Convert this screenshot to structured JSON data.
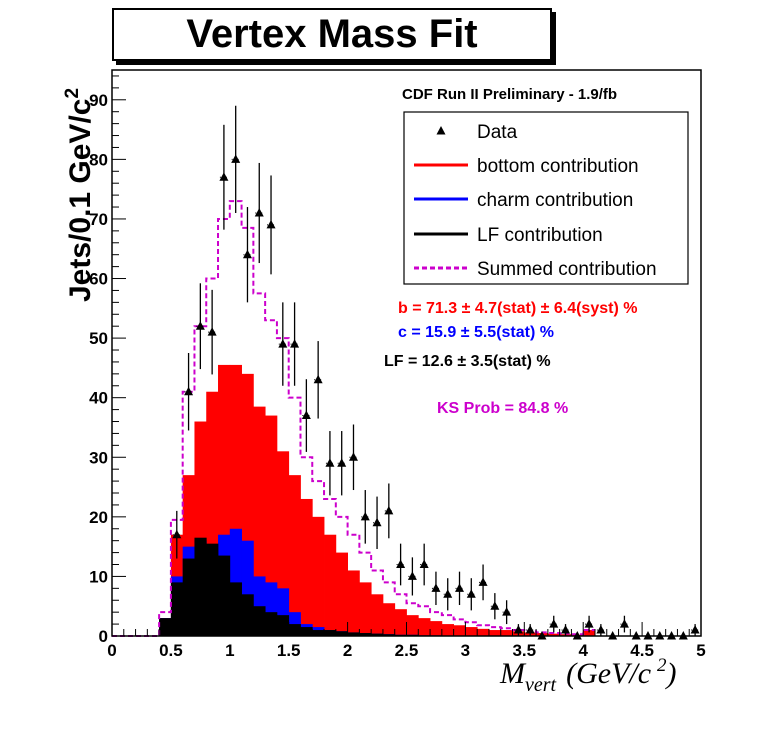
{
  "chart_data": {
    "type": "histogram",
    "title": "Vertex Mass Fit",
    "experiment_label": "CDF Run II Preliminary - 1.9/fb",
    "ylabel": "Jets/0.1 GeV/c",
    "ylabel_superscript": "2",
    "xlabel_main": "M",
    "xlabel_sub": "vert",
    "xlabel_units": "(GeV/c",
    "xlabel_units_superscript": "2",
    "xlabel_units_close": ")",
    "xlim": [
      0,
      5
    ],
    "ylim": [
      0,
      95
    ],
    "x_ticks": [
      "0",
      "0.5",
      "1",
      "1.5",
      "2",
      "2.5",
      "3",
      "3.5",
      "4",
      "4.5",
      "5"
    ],
    "y_ticks": [
      "0",
      "10",
      "20",
      "30",
      "40",
      "50",
      "60",
      "70",
      "80",
      "90"
    ],
    "bin_edges_start": 0.4,
    "bin_width": 0.1,
    "series": [
      {
        "name": "bottom contribution",
        "color": "#ff0000",
        "values": [
          3,
          17,
          27,
          36,
          41,
          45.5,
          45.5,
          44,
          38.5,
          37,
          31,
          27,
          23,
          20,
          17,
          14,
          11,
          9,
          7,
          5.5,
          4.5,
          3.5,
          3,
          2.5,
          2,
          1.8,
          1.5,
          1.2,
          1,
          1,
          0.8,
          0.6,
          0.5,
          0.4,
          0.3,
          0.2,
          1
        ]
      },
      {
        "name": "charm contribution",
        "color": "#0000ff",
        "values": [
          3,
          10,
          15,
          16,
          15,
          17,
          18,
          16,
          10,
          9,
          8,
          4,
          2,
          1.5,
          1,
          0.8,
          0.6,
          0.5,
          0.4,
          0.3,
          0.2,
          0.2,
          0.1,
          0.1,
          0,
          0,
          0,
          0,
          0,
          0,
          0,
          0,
          0,
          0,
          0,
          0,
          0
        ]
      },
      {
        "name": "LF contribution",
        "color": "#000000",
        "values": [
          3,
          9,
          13,
          16.5,
          15.5,
          13.5,
          9,
          7,
          5,
          4,
          3.5,
          2,
          1.5,
          1,
          1,
          0.8,
          0.6,
          0.5,
          0.4,
          0.3,
          0.2,
          0.2,
          0.1,
          0.1,
          0,
          0,
          0,
          0,
          0,
          0,
          0,
          0,
          0,
          0,
          0,
          0,
          0
        ]
      },
      {
        "name": "Summed contribution",
        "color": "#cc00cc",
        "values": [
          4,
          19.5,
          41,
          52,
          60,
          70,
          73,
          68.5,
          57.5,
          53,
          50,
          40,
          30,
          26,
          23,
          20,
          17,
          14,
          11,
          9,
          7,
          5.5,
          5,
          4,
          3.5,
          2.8,
          2.3,
          1.8,
          1.5,
          1.3,
          1,
          0.8,
          0.6,
          0.5,
          0.4,
          0.3,
          1
        ]
      },
      {
        "name": "Data",
        "color": "#000000",
        "x": [
          0.55,
          0.65,
          0.75,
          0.85,
          0.95,
          1.05,
          1.15,
          1.25,
          1.35,
          1.45,
          1.55,
          1.65,
          1.75,
          1.85,
          1.95,
          2.05,
          2.15,
          2.25,
          2.35,
          2.45,
          2.55,
          2.65,
          2.75,
          2.85,
          2.95,
          3.05,
          3.15,
          3.25,
          3.35,
          3.45,
          3.55,
          3.65,
          3.75,
          3.85,
          3.95,
          4.05,
          4.15,
          4.25,
          4.35,
          4.45,
          4.55,
          4.65,
          4.75,
          4.85,
          4.95
        ],
        "values": [
          17,
          41,
          52,
          51,
          77,
          80,
          64,
          71,
          69,
          49,
          49,
          37,
          43,
          29,
          29,
          30,
          20,
          19,
          21,
          12,
          10,
          12,
          8,
          7,
          8,
          7,
          9,
          5,
          4,
          1,
          1,
          0,
          2,
          1,
          0,
          2,
          1,
          0,
          2,
          0,
          0,
          0,
          0,
          0,
          1
        ],
        "errors": [
          4,
          6.5,
          7.2,
          7.1,
          8.8,
          9,
          8,
          8.4,
          8.3,
          7,
          7,
          6.1,
          6.5,
          5.4,
          5.4,
          5.5,
          4.5,
          4.4,
          4.6,
          3.5,
          3.2,
          3.5,
          2.8,
          2.7,
          2.8,
          2.7,
          3,
          2.2,
          2,
          1,
          1,
          0,
          1.4,
          1,
          0,
          1.4,
          1,
          0,
          1.4,
          0,
          0,
          0,
          0,
          0,
          1
        ]
      }
    ],
    "legend": [
      {
        "label": "Data",
        "style": "marker",
        "color": "#000000"
      },
      {
        "label": "bottom contribution",
        "style": "line",
        "color": "#ff0000"
      },
      {
        "label": "charm contribution",
        "style": "line",
        "color": "#0000ff"
      },
      {
        "label": "LF contribution",
        "style": "line",
        "color": "#000000"
      },
      {
        "label": "Summed contribution",
        "style": "dashed",
        "color": "#cc00cc"
      }
    ],
    "legend_position": "top-right",
    "fit_results": [
      {
        "text": "b =  71.3 ±  4.7(stat) ± 6.4(syst) %",
        "color": "#ff0000"
      },
      {
        "text": "c =  15.9 ±  5.5(stat) %",
        "color": "#0000ff"
      },
      {
        "text": "LF =  12.6 ±  3.5(stat) %",
        "color": "#000000"
      },
      {
        "text": "KS Prob =  84.8 %",
        "color": "#cc00cc"
      }
    ]
  }
}
